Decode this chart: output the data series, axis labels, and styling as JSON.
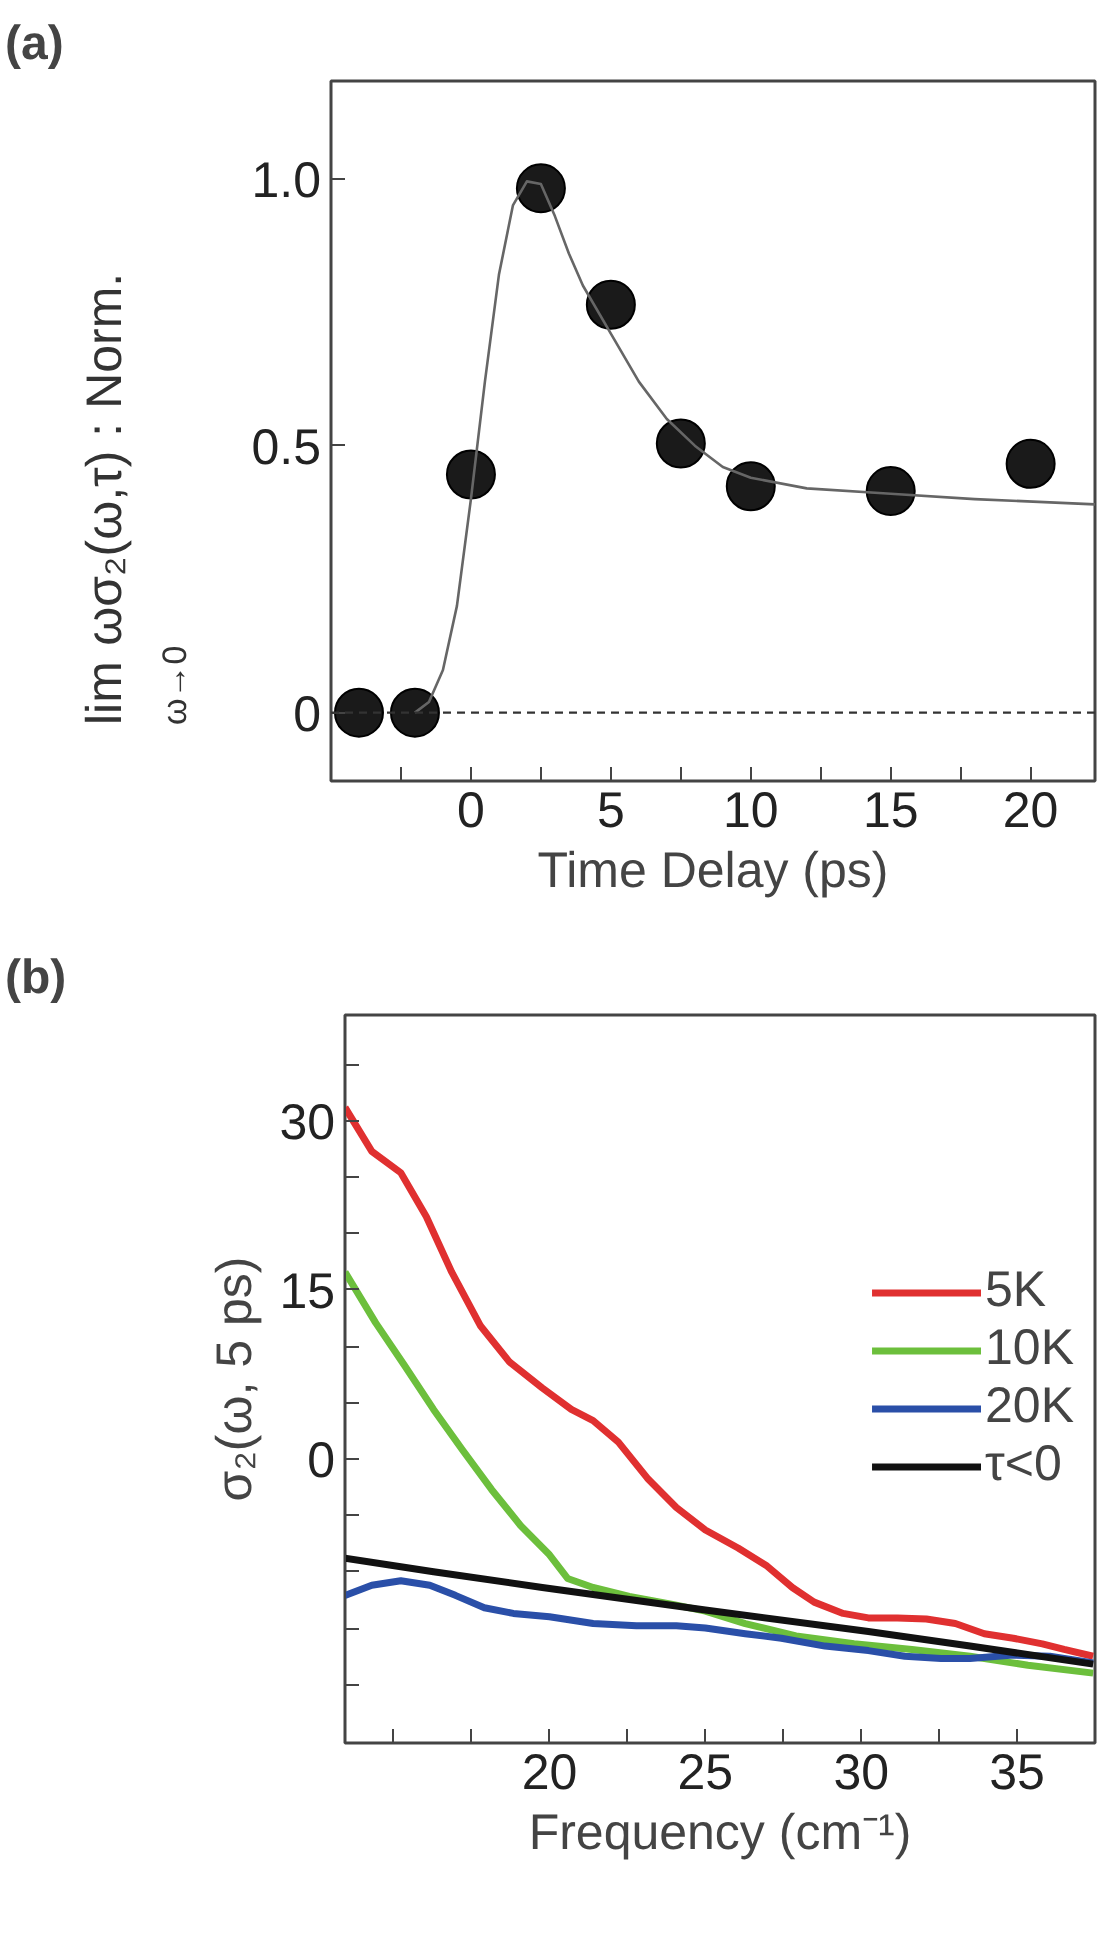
{
  "chart_data": [
    {
      "type": "scatter",
      "title": "(a)",
      "xlabel": "Time Delay (ps)",
      "ylabel": "lim$_{ω→0}$ ωσ₂(ω,τ) : Norm.",
      "xlim": [
        -5,
        22.3
      ],
      "ylim": [
        -0.128,
        1.183
      ],
      "xticks": [
        {
          "value": -2.5,
          "label": null
        },
        0,
        {
          "value": 2.5,
          "label": null
        },
        5,
        {
          "value": 7.5,
          "label": null
        },
        10,
        {
          "value": 12.5,
          "label": null
        },
        15,
        {
          "value": 17.5,
          "label": null
        },
        20
      ],
      "yticks": [
        0,
        0.5,
        {
          "value": 1,
          "label": "1.0"
        }
      ],
      "grid": false,
      "marker": "circle",
      "ref_lines": [
        {
          "axis": "y",
          "value": 0,
          "line_style": "dashed",
          "color": "#333333"
        }
      ],
      "series": [
        {
          "type": "scatter",
          "color": "#1a1a1a",
          "x": [
            -4,
            -2,
            0,
            2.5,
            5,
            7.5,
            10,
            15,
            20
          ],
          "values": [
            0,
            0,
            0.446,
            0.982,
            0.764,
            0.504,
            0.424,
            0.415,
            0.466
          ]
        },
        {
          "type": "line",
          "color": "#666666",
          "marker": "none",
          "x": [
            -2,
            -1.5,
            -1,
            -0.5,
            0,
            0.5,
            1,
            1.5,
            2,
            2.5,
            3,
            3.5,
            4,
            5,
            6,
            7,
            8,
            9,
            10,
            12,
            15,
            18,
            22.3
          ],
          "values": [
            0,
            0.02,
            0.08,
            0.2,
            0.4,
            0.62,
            0.82,
            0.95,
            0.995,
            0.99,
            0.93,
            0.86,
            0.8,
            0.71,
            0.62,
            0.55,
            0.5,
            0.46,
            0.44,
            0.42,
            0.41,
            0.4,
            0.39
          ]
        }
      ]
    },
    {
      "type": "line",
      "title": "(b)",
      "xlabel": "Frequency (cm⁻¹)",
      "ylabel": "σ₂(ω, 5 ps)",
      "xlim": [
        13.44,
        37.5
      ],
      "ylim": [
        -25.2,
        39.4
      ],
      "xticks": [
        {
          "value": 15,
          "label": null
        },
        {
          "value": 17.5,
          "label": null
        },
        20,
        {
          "value": 22.5,
          "label": null
        },
        25,
        {
          "value": 27.5,
          "label": null
        },
        30,
        {
          "value": 32.5,
          "label": null
        },
        35,
        {
          "value": 37.5,
          "label": null
        }
      ],
      "yticks": [
        {
          "value": -20,
          "label": null
        },
        {
          "value": -15,
          "label": null
        },
        {
          "value": -10,
          "label": null
        },
        {
          "value": -5,
          "label": null
        },
        0,
        {
          "value": 5,
          "label": null
        },
        {
          "value": 10,
          "label": null
        },
        15,
        {
          "value": 20,
          "label": null
        },
        {
          "value": 25,
          "label": null
        },
        30,
        {
          "value": 35,
          "label": null
        }
      ],
      "grid": false,
      "legend": "right",
      "series": [
        {
          "name": "5K",
          "color": "#e03030",
          "x": [
            13.44,
            14.3,
            15.23,
            16.05,
            16.86,
            17.79,
            18.72,
            19.77,
            20.7,
            21.4,
            22.21,
            23.14,
            24.07,
            25,
            26.05,
            26.98,
            27.79,
            28.49,
            29.42,
            30.23,
            31.16,
            32.09,
            33.02,
            33.95,
            34.88,
            35.81,
            36.51,
            37.44
          ],
          "values": [
            31.2,
            27.3,
            25.4,
            21.5,
            16.6,
            11.8,
            8.6,
            6.3,
            4.4,
            3.4,
            1.5,
            -1.7,
            -4.3,
            -6.3,
            -7.9,
            -9.5,
            -11.4,
            -12.7,
            -13.7,
            -14.1,
            -14.1,
            -14.2,
            -14.6,
            -15.5,
            -15.9,
            -16.4,
            -16.9,
            -17.5
          ]
        },
        {
          "name": "10K",
          "color": "#6cbf3c",
          "x": [
            13.44,
            14.42,
            15.35,
            16.28,
            17.21,
            18.14,
            19.07,
            20.0,
            20.58,
            21.4,
            22.56,
            23.95,
            25.0,
            26.28,
            27.91,
            29.77,
            31.63,
            33.49,
            35.35,
            37.44
          ],
          "values": [
            16.6,
            12.1,
            8.3,
            4.4,
            0.8,
            -2.7,
            -5.9,
            -8.5,
            -10.6,
            -11.4,
            -12.2,
            -12.9,
            -13.5,
            -14.6,
            -15.7,
            -16.4,
            -16.9,
            -17.5,
            -18.3,
            -19.0
          ]
        },
        {
          "name": "20K",
          "color": "#2a4fa8",
          "x": [
            13.44,
            14.3,
            15.23,
            16.16,
            16.98,
            17.91,
            18.84,
            20.0,
            21.4,
            22.79,
            24.07,
            25,
            26.28,
            27.44,
            28.84,
            30.23,
            31.4,
            32.56,
            33.49,
            34.88,
            36.05,
            37.44
          ],
          "values": [
            -12.1,
            -11.2,
            -10.8,
            -11.2,
            -12.1,
            -13.2,
            -13.7,
            -14.0,
            -14.6,
            -14.8,
            -14.8,
            -15.0,
            -15.5,
            -15.9,
            -16.6,
            -17.0,
            -17.5,
            -17.7,
            -17.7,
            -17.4,
            -17.5,
            -18.1
          ]
        },
        {
          "name": "τ<0",
          "color": "#111111",
          "x": [
            13.44,
            16.28,
            19.77,
            25,
            30.23,
            33.49,
            37.44
          ],
          "values": [
            -8.8,
            -10.0,
            -11.4,
            -13.4,
            -15.3,
            -16.6,
            -18.2
          ]
        }
      ]
    }
  ]
}
